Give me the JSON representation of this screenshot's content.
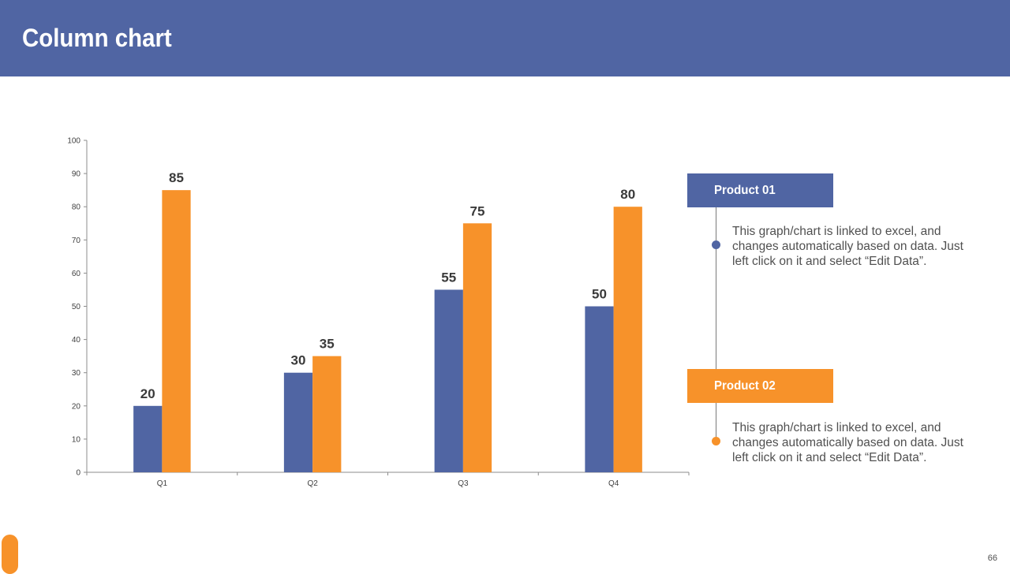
{
  "header": {
    "title": "Column chart"
  },
  "chart_data": {
    "type": "bar",
    "title": "",
    "xlabel": "",
    "ylabel": "",
    "categories": [
      "Q1",
      "Q2",
      "Q3",
      "Q4"
    ],
    "series": [
      {
        "name": "Product 01",
        "color": "#5065a3",
        "values": [
          20,
          30,
          55,
          50
        ]
      },
      {
        "name": "Product 02",
        "color": "#f7922a",
        "values": [
          85,
          35,
          75,
          80
        ]
      }
    ],
    "ylim": [
      0,
      100
    ],
    "yticks": [
      0,
      10,
      20,
      30,
      40,
      50,
      60,
      70,
      80,
      90,
      100
    ],
    "grid": false,
    "data_labels": true,
    "legend_position": "right"
  },
  "legend": [
    {
      "label": "Product 01",
      "color": "#5065a3",
      "description": "This graph/chart is linked to excel, and changes automatically based on data. Just left click on it and select “Edit Data”."
    },
    {
      "label": "Product 02",
      "color": "#f7922a",
      "description": "This graph/chart is linked to excel, and changes automatically based on data. Just left click on it and select “Edit Data”."
    }
  ],
  "footer": {
    "page_number": "66"
  },
  "colors": {
    "accent_blue": "#5065a3",
    "accent_orange": "#f7922a"
  }
}
